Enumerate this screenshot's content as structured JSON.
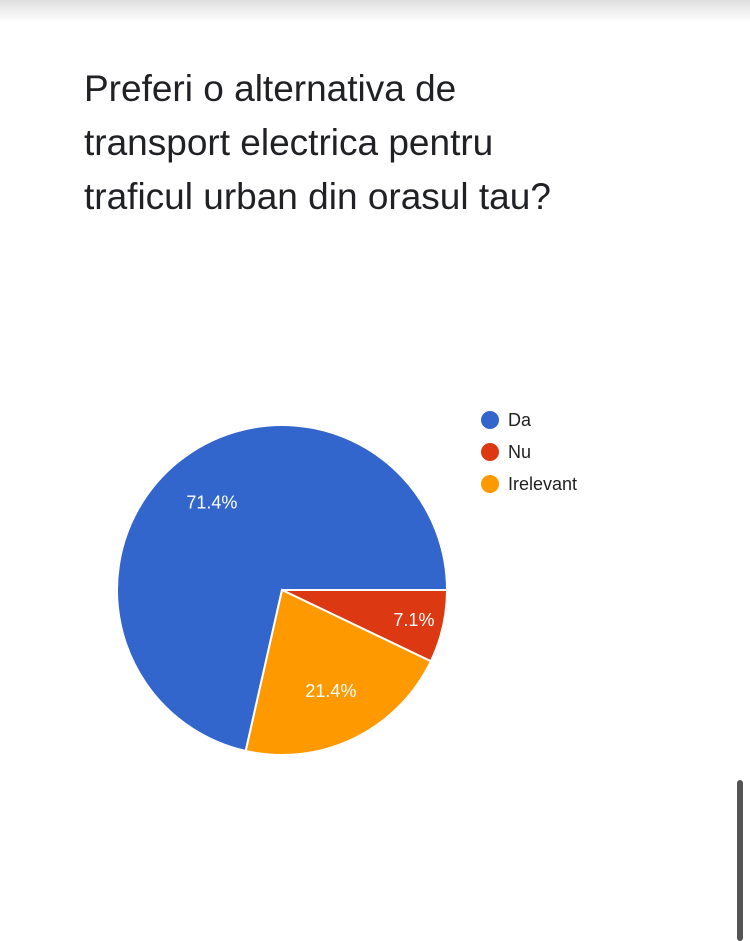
{
  "question": "Preferi o alternativa de transport electrica pentru traficul urban din orasul tau?",
  "chart_data": {
    "type": "pie",
    "labels": [
      "Da",
      "Nu",
      "Irelevant"
    ],
    "values": [
      71.4,
      7.1,
      21.4
    ],
    "value_labels": [
      "71.4%",
      "7.1%",
      "21.4%"
    ],
    "colors": [
      "#3366cc",
      "#dc3912",
      "#ff9900"
    ],
    "legend_position": "right"
  }
}
